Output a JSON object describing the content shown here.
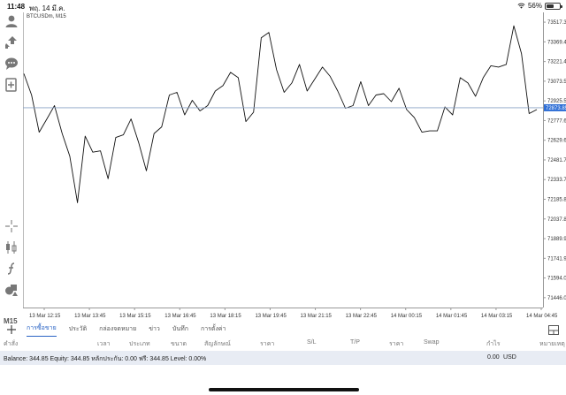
{
  "status_bar": {
    "time": "11:48",
    "date": "พฤ. 14 มี.ค.",
    "battery_text": "56%",
    "battery_level": 0.56
  },
  "chart": {
    "symbol": "BTCUSDm, M15",
    "current_price_tag": "72873.85"
  },
  "toolbar": {
    "icons": [
      "account-icon",
      "trade-icon",
      "chat-icon",
      "new-order-icon",
      "crosshair-icon",
      "candles-icon",
      "indicator-icon",
      "objects-icon"
    ],
    "timeframe": "M15"
  },
  "tabs": [
    {
      "label": "การซื้อขาย",
      "active": true
    },
    {
      "label": "ประวัติ",
      "active": false
    },
    {
      "label": "กล่องจดหมาย",
      "active": false
    },
    {
      "label": "ข่าว",
      "active": false
    },
    {
      "label": "บันทึก",
      "active": false
    },
    {
      "label": "การตั้งค่า",
      "active": false
    }
  ],
  "columns": [
    "คำสั่ง",
    "เวลา",
    "ประเภท",
    "ขนาด",
    "สัญลักษณ์",
    "ราคา",
    "S/L",
    "T/P",
    "ราคา",
    "Swap",
    "กำไร",
    "หมายเหตุ"
  ],
  "balance": {
    "text": "Balance: 344.85 Equity: 344.85 หลักประกัน: 0.00 ฟรี: 344.85 Level: 0.00%",
    "profit": "0.00",
    "currency": "USD"
  },
  "chart_data": {
    "type": "line",
    "title": "BTCUSDm, M15",
    "xlabel": "",
    "ylabel": "",
    "ylim": [
      71372.0,
      73591.0
    ],
    "yticks": [
      73517.35,
      73369.4,
      73221.45,
      73073.5,
      72925.55,
      72777.6,
      72629.65,
      72481.7,
      72333.75,
      72185.8,
      72037.85,
      71889.9,
      71741.95,
      71594.0,
      71446.05
    ],
    "xticks": [
      "13 Mar 12:15",
      "13 Mar 13:45",
      "13 Mar 15:15",
      "13 Mar 16:45",
      "13 Mar 18:15",
      "13 Mar 19:45",
      "13 Mar 21:15",
      "13 Mar 22:45",
      "14 Mar 00:15",
      "14 Mar 01:45",
      "14 Mar 03:15",
      "14 Mar 04:45"
    ],
    "current_price": 72873.85,
    "series": [
      {
        "values": [
          73130,
          72970,
          72690,
          72790,
          72890,
          72680,
          72510,
          72160,
          72660,
          72540,
          72550,
          72340,
          72650,
          72670,
          72790,
          72610,
          72400,
          72680,
          72730,
          72970,
          72990,
          72820,
          72930,
          72850,
          72890,
          73000,
          73040,
          73140,
          73100,
          72770,
          72840,
          73400,
          73440,
          73160,
          72990,
          73060,
          73200,
          73000,
          73090,
          73180,
          73110,
          73000,
          72870,
          72890,
          73070,
          72890,
          72970,
          72980,
          72920,
          73020,
          72860,
          72800,
          72690,
          72700,
          72700,
          72880,
          72820,
          73100,
          73060,
          72960,
          73100,
          73190,
          73180,
          73200,
          73490,
          73280,
          72830,
          72860
        ]
      }
    ]
  }
}
